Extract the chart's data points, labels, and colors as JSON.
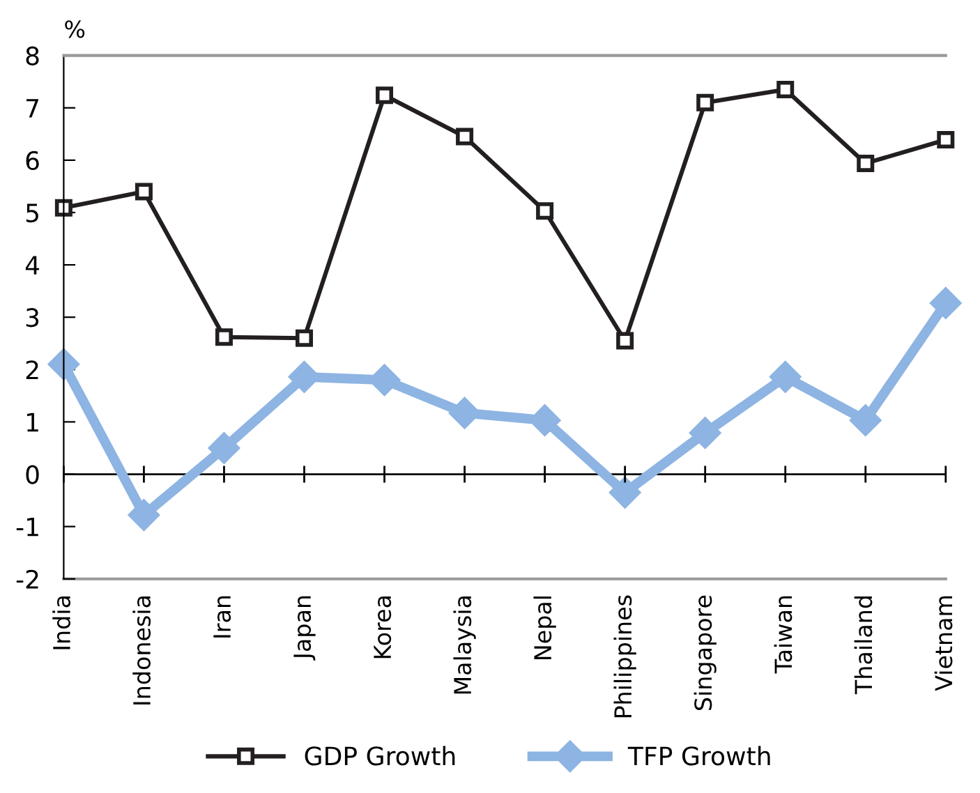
{
  "chart_data": {
    "type": "line",
    "ylabel": "%",
    "categories": [
      "India",
      "Indonesia",
      "Iran",
      "Japan",
      "Korea",
      "Malaysia",
      "Nepal",
      "Philippines",
      "Singapore",
      "Taiwan",
      "Thailand",
      "Vietnam"
    ],
    "series": [
      {
        "name": "GDP Growth",
        "color": "#231f20",
        "marker": "square",
        "values": [
          5.09,
          5.4,
          2.62,
          2.6,
          7.24,
          6.45,
          5.03,
          2.55,
          7.1,
          7.35,
          5.94,
          6.39
        ]
      },
      {
        "name": "TFP Growth",
        "color": "#8db4e2",
        "marker": "diamond",
        "values": [
          2.1,
          -0.78,
          0.5,
          1.86,
          1.8,
          1.17,
          1.03,
          -0.35,
          0.79,
          1.86,
          1.03,
          3.27
        ]
      }
    ],
    "ylim": [
      -2,
      8
    ],
    "yticks": [
      -2,
      -1,
      0,
      1,
      2,
      3,
      4,
      5,
      6,
      7,
      8
    ],
    "grid": false,
    "ref_lines": [
      {
        "axis": "y",
        "value": 0,
        "color": "#000000"
      }
    ],
    "legend": "bottom",
    "line_style": "solid"
  }
}
